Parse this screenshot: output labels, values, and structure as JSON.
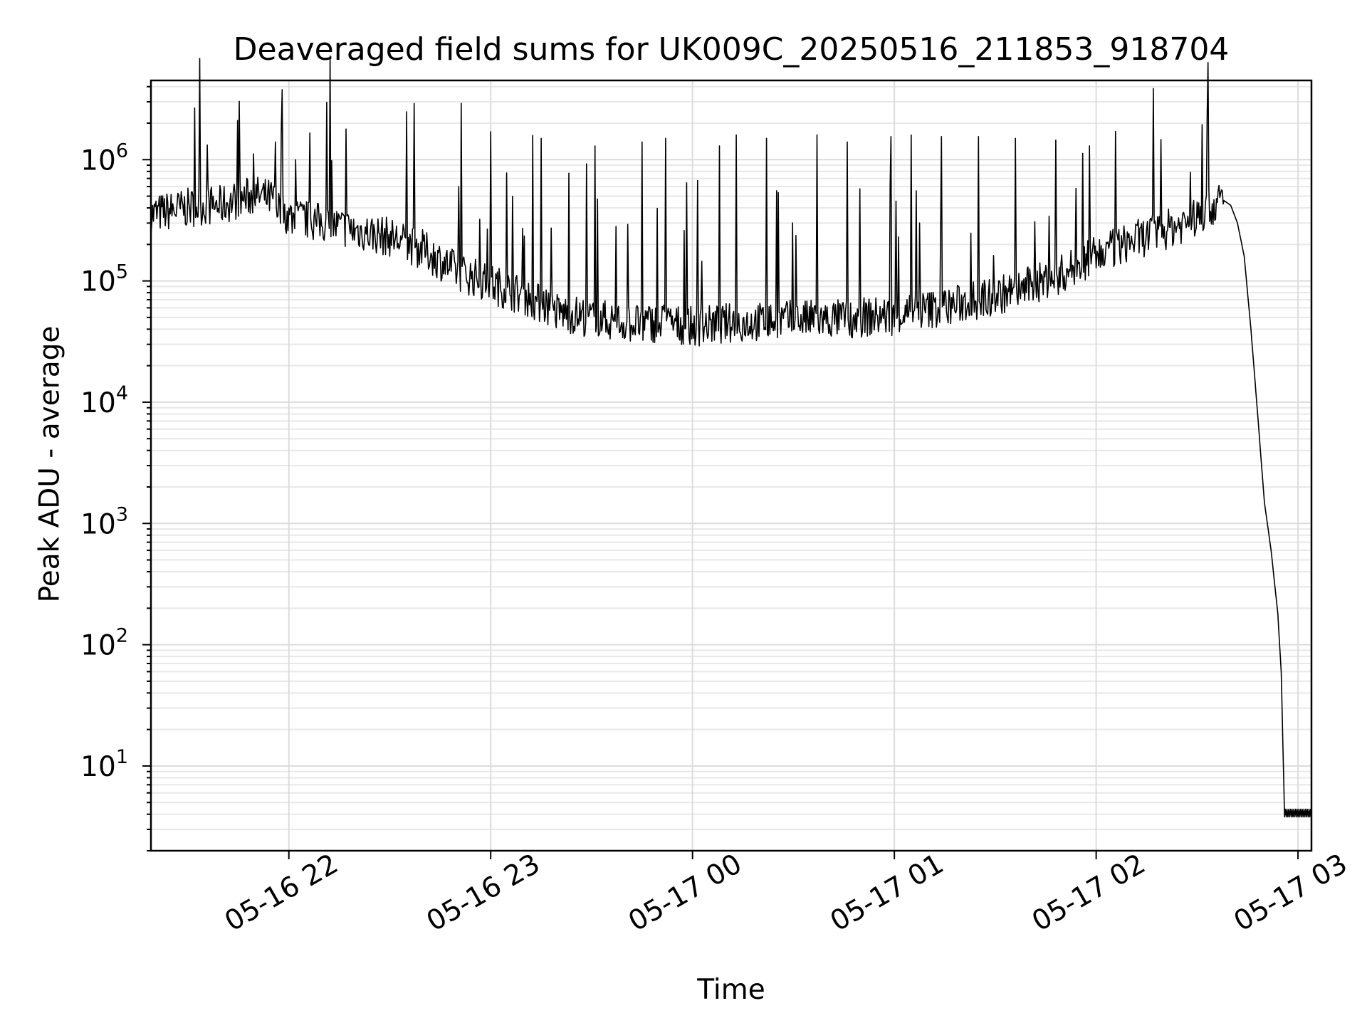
{
  "chart_data": {
    "type": "line",
    "title": "Deaveraged field sums for UK009C_20250516_211853_918704",
    "xlabel": "Time",
    "ylabel": "Peak ADU - average",
    "y_scale": "log",
    "ylim": [
      2,
      4500000
    ],
    "xlim": [
      "2025-05-16 21:19",
      "2025-05-17 03:04"
    ],
    "grid": true,
    "x_ticks": [
      {
        "t": "2025-05-16 22:00",
        "label": "05-16 22"
      },
      {
        "t": "2025-05-16 23:00",
        "label": "05-16 23"
      },
      {
        "t": "2025-05-17 00:00",
        "label": "05-17 00"
      },
      {
        "t": "2025-05-17 01:00",
        "label": "05-17 01"
      },
      {
        "t": "2025-05-17 02:00",
        "label": "05-17 02"
      },
      {
        "t": "2025-05-17 03:00",
        "label": "05-17 03"
      }
    ],
    "y_ticks": [
      {
        "value": 10,
        "base": "10",
        "exp": "1"
      },
      {
        "value": 100,
        "base": "10",
        "exp": "2"
      },
      {
        "value": 1000,
        "base": "10",
        "exp": "3"
      },
      {
        "value": 10000,
        "base": "10",
        "exp": "4"
      },
      {
        "value": 100000,
        "base": "10",
        "exp": "5"
      },
      {
        "value": 1000000,
        "base": "10",
        "exp": "6"
      }
    ],
    "series": [
      {
        "color": "#000000",
        "points": [
          [
            "2025-05-16 21:19",
            350000
          ],
          [
            "2025-05-16 21:25",
            380000
          ],
          [
            "2025-05-16 21:30",
            400000
          ],
          [
            "2025-05-16 21:35",
            420000
          ],
          [
            "2025-05-16 21:40",
            420000
          ],
          [
            "2025-05-16 21:45",
            470000
          ],
          [
            "2025-05-16 21:50",
            510000
          ],
          [
            "2025-05-16 21:55",
            470000
          ],
          [
            "2025-05-16 22:00",
            340000
          ],
          [
            "2025-05-16 22:10",
            300000
          ],
          [
            "2025-05-16 22:20",
            260000
          ],
          [
            "2025-05-16 22:30",
            230000
          ],
          [
            "2025-05-16 22:40",
            180000
          ],
          [
            "2025-05-16 22:50",
            120000
          ],
          [
            "2025-05-16 23:00",
            95000
          ],
          [
            "2025-05-16 23:10",
            75000
          ],
          [
            "2025-05-16 23:20",
            55000
          ],
          [
            "2025-05-16 23:30",
            50000
          ],
          [
            "2025-05-16 23:40",
            45000
          ],
          [
            "2025-05-16 23:50",
            45000
          ],
          [
            "2025-05-17 00:00",
            42000
          ],
          [
            "2025-05-17 00:10",
            45000
          ],
          [
            "2025-05-17 00:20",
            46000
          ],
          [
            "2025-05-17 00:30",
            48000
          ],
          [
            "2025-05-17 00:40",
            48000
          ],
          [
            "2025-05-17 00:50",
            50000
          ],
          [
            "2025-05-17 01:00",
            52000
          ],
          [
            "2025-05-17 01:10",
            58000
          ],
          [
            "2025-05-17 01:20",
            65000
          ],
          [
            "2025-05-17 01:30",
            75000
          ],
          [
            "2025-05-17 01:40",
            90000
          ],
          [
            "2025-05-17 01:50",
            115000
          ],
          [
            "2025-05-17 02:00",
            160000
          ],
          [
            "2025-05-17 02:10",
            210000
          ],
          [
            "2025-05-17 02:20",
            260000
          ],
          [
            "2025-05-17 02:30",
            330000
          ],
          [
            "2025-05-17 02:35",
            420000
          ],
          [
            "2025-05-17 02:38",
            460000
          ],
          [
            "2025-05-17 02:40",
            420000
          ],
          [
            "2025-05-17 02:42",
            300000
          ],
          [
            "2025-05-17 02:44",
            160000
          ],
          [
            "2025-05-17 02:46",
            40000
          ],
          [
            "2025-05-17 02:48",
            8000
          ],
          [
            "2025-05-17 02:50",
            1500
          ],
          [
            "2025-05-17 02:52",
            600
          ],
          [
            "2025-05-17 02:54",
            180
          ],
          [
            "2025-05-17 02:55",
            60
          ],
          [
            "2025-05-17 02:56",
            4
          ],
          [
            "2025-05-17 03:00",
            4
          ],
          [
            "2025-05-17 03:04",
            4
          ]
        ],
        "spikes": [
          [
            "2025-05-16 21:56",
            1400000
          ],
          [
            "2025-05-16 22:02",
            1000000
          ],
          [
            "2025-05-16 23:00",
            1700000
          ],
          [
            "2025-05-16 23:15",
            1500000
          ],
          [
            "2025-05-16 23:31",
            1300000
          ],
          [
            "2025-05-16 23:45",
            1400000
          ],
          [
            "2025-05-16 23:52",
            1500000
          ],
          [
            "2025-05-17 00:08",
            1300000
          ],
          [
            "2025-05-17 00:13",
            1600000
          ],
          [
            "2025-05-17 00:22",
            1500000
          ],
          [
            "2025-05-17 00:37",
            1600000
          ],
          [
            "2025-05-17 00:46",
            1400000
          ],
          [
            "2025-05-17 00:59",
            1550000
          ],
          [
            "2025-05-17 01:05",
            1600000
          ],
          [
            "2025-05-17 01:14",
            1550000
          ],
          [
            "2025-05-17 01:25",
            1550000
          ],
          [
            "2025-05-17 01:36",
            1500000
          ],
          [
            "2025-05-17 01:48",
            1450000
          ],
          [
            "2025-05-17 01:58",
            1300000
          ],
          [
            "2025-05-17 02:33",
            2300000
          ]
        ]
      }
    ]
  }
}
